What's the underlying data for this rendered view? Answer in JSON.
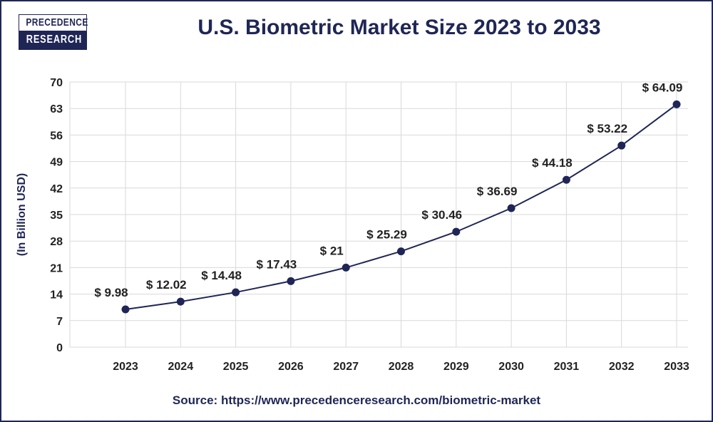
{
  "logo": {
    "line1": "PRECEDENCE",
    "line2": "RESEARCH"
  },
  "source": "Source: https://www.precedenceresearch.com/biometric-market",
  "colors": {
    "primary": "#1f2656",
    "grid": "#d9d9d9"
  },
  "chart_data": {
    "type": "line",
    "title": "U.S. Biometric Market Size 2023 to 2033",
    "xlabel": "",
    "ylabel": "(In Billion USD)",
    "categories": [
      "2023",
      "2024",
      "2025",
      "2026",
      "2027",
      "2028",
      "2029",
      "2030",
      "2031",
      "2032",
      "2033"
    ],
    "values": [
      9.98,
      12.02,
      14.48,
      17.43,
      21,
      25.29,
      30.46,
      36.69,
      44.18,
      53.22,
      64.09
    ],
    "data_labels": [
      "$ 9.98",
      "$ 12.02",
      "$ 14.48",
      "$ 17.43",
      "$ 21",
      "$ 25.29",
      "$ 30.46",
      "$ 36.69",
      "$ 44.18",
      "$ 53.22",
      "$ 64.09"
    ],
    "yticks": [
      0,
      7,
      14,
      21,
      28,
      35,
      42,
      49,
      56,
      63,
      70
    ],
    "ylim": [
      0,
      70
    ],
    "grid": true,
    "legend": "none"
  }
}
